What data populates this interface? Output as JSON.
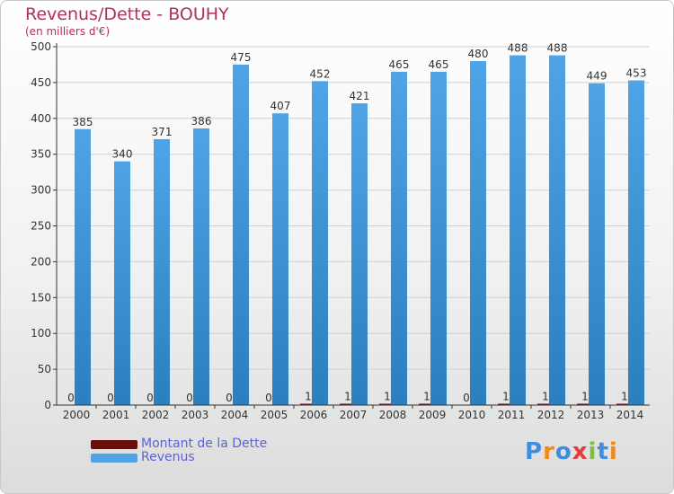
{
  "header": {
    "title": "Revenus/Dette - BOUHY",
    "subtitle": "(en milliers d'€)"
  },
  "colors": {
    "debt": "#6b0d0d",
    "revenue": "#4ea4e6",
    "revenue_dark": "#2a7fc0",
    "grid": "#d0d0d0",
    "axis": "#333333",
    "title": "#b1305a",
    "legend_text": "#5a63d8"
  },
  "chart_data": {
    "type": "bar",
    "title": "Revenus/Dette - BOUHY",
    "ylabel": "(en milliers d'€)",
    "xlabel": "",
    "ylim": [
      0,
      500
    ],
    "yticks": [
      0,
      50,
      100,
      150,
      200,
      250,
      300,
      350,
      400,
      450,
      500
    ],
    "grid": true,
    "categories": [
      "2000",
      "2001",
      "2002",
      "2003",
      "2004",
      "2005",
      "2006",
      "2007",
      "2008",
      "2009",
      "2010",
      "2011",
      "2012",
      "2013",
      "2014"
    ],
    "series": [
      {
        "name": "Montant de la Dette",
        "values": [
          0,
          0,
          0,
          0,
          0,
          0,
          1,
          1,
          1,
          1,
          0,
          1,
          1,
          1,
          1
        ]
      },
      {
        "name": "Revenus",
        "values": [
          385,
          340,
          371,
          386,
          475,
          407,
          452,
          421,
          465,
          465,
          480,
          488,
          488,
          449,
          453
        ]
      }
    ],
    "legend_position": "bottom-left"
  },
  "legend": [
    {
      "label": "Montant de la Dette",
      "color": "#6b0d0d"
    },
    {
      "label": "Revenus",
      "color": "#4ea4e6"
    }
  ],
  "logo": {
    "text": "Proxiti",
    "letters": [
      "P",
      "r",
      "o",
      "x",
      "i",
      "t",
      "i"
    ],
    "colors": [
      "#3b8ee0",
      "#f08a1c",
      "#3b8ee0",
      "#e83a3a",
      "#7bc043",
      "#3b8ee0",
      "#f08a1c"
    ]
  }
}
